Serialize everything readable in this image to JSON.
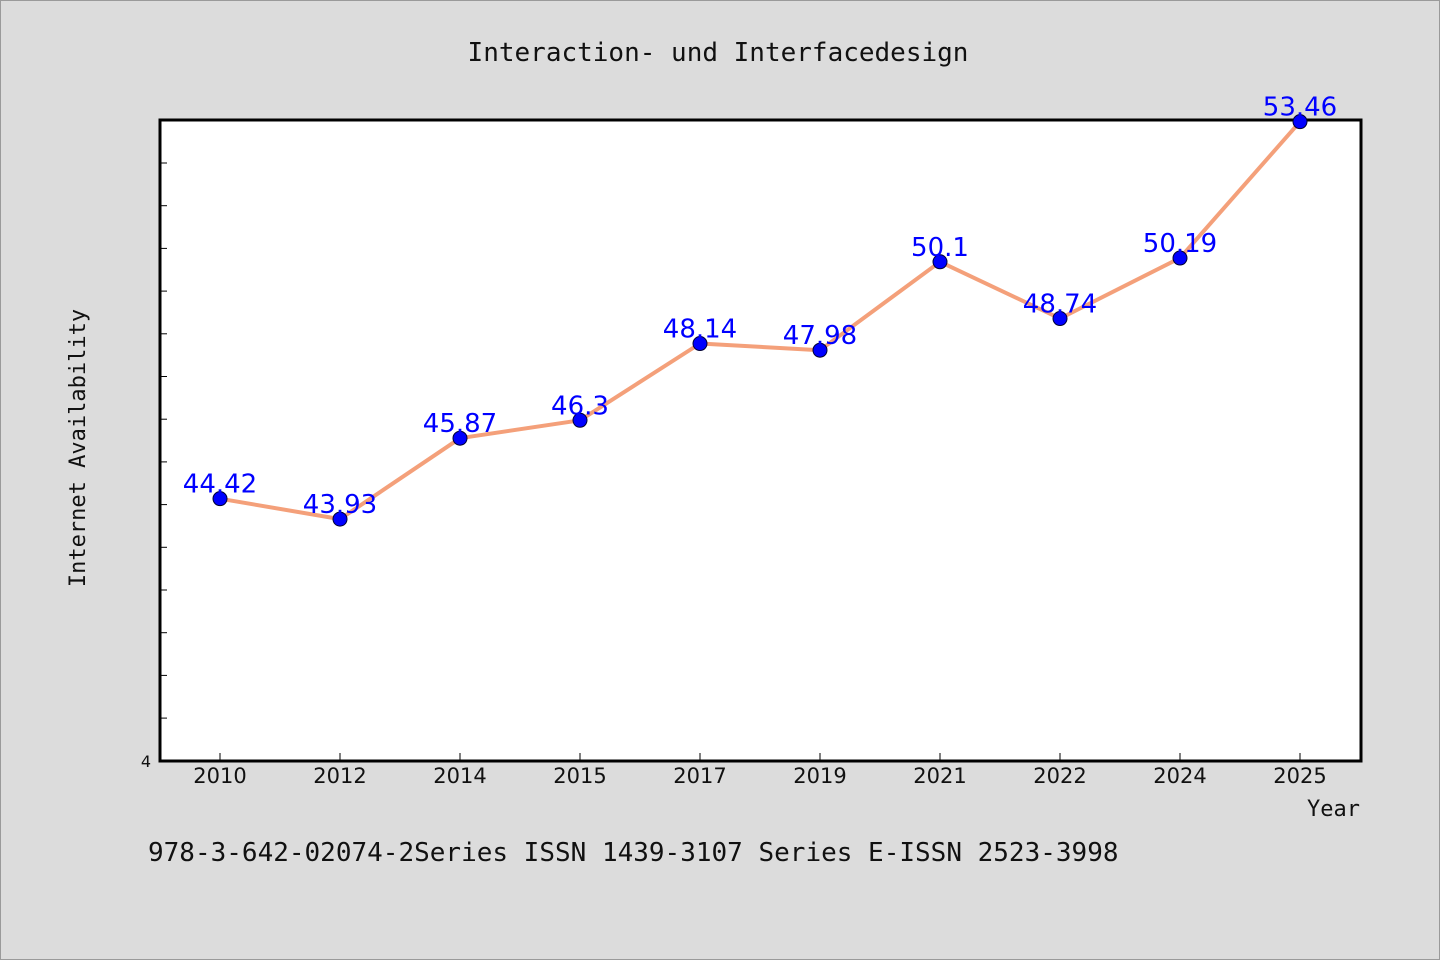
{
  "chart_data": {
    "type": "line",
    "title": "Interaction- und Interfacedesign",
    "xlabel": "Year",
    "ylabel": "Internet Availability",
    "categories": [
      "2010",
      "2012",
      "2014",
      "2015",
      "2017",
      "2019",
      "2021",
      "2022",
      "2024",
      "2025"
    ],
    "series": [
      {
        "values": [
          44.42,
          43.93,
          45.87,
          46.3,
          48.14,
          47.98,
          50.1,
          48.74,
          50.19,
          53.46
        ],
        "labels": [
          "44.42",
          "43.93",
          "45.87",
          "46.3",
          "48.14",
          "47.98",
          "50.1",
          "48.74",
          "50.19",
          "53.46"
        ]
      }
    ],
    "ylim": [
      38.13,
      53.5
    ],
    "y_tick_labels": [
      "4"
    ],
    "grid": false,
    "line_color": "#f4a07a",
    "marker_color": "#0000ff",
    "label_color": "#0000ff"
  },
  "footer": {
    "text": "978-3-642-02074-2Series ISSN 1439-3107 Series E-ISSN 2523-3998"
  }
}
